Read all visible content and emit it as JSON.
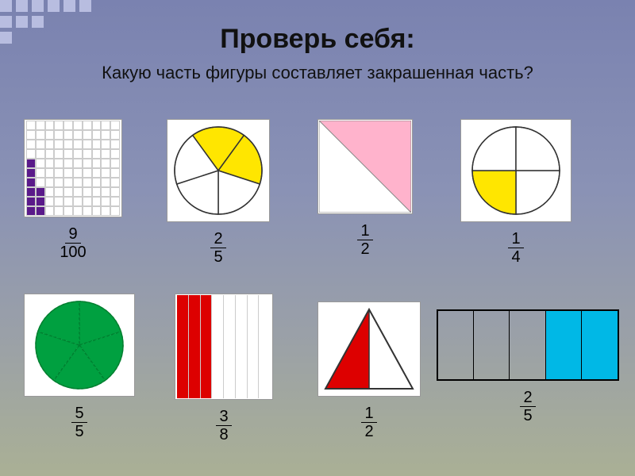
{
  "title": "Проверь себя:",
  "subtitle": "Какую часть фигуры составляет закрашенная часть?",
  "figures": {
    "f1": {
      "num": "9",
      "den": "100",
      "fill_color": "#5a1a8a",
      "grid": 10,
      "filled_cells": [
        [
          4,
          0
        ],
        [
          5,
          0
        ],
        [
          6,
          0
        ],
        [
          7,
          0
        ],
        [
          7,
          1
        ],
        [
          8,
          0
        ],
        [
          8,
          1
        ],
        [
          9,
          0
        ],
        [
          9,
          1
        ]
      ]
    },
    "f2": {
      "num": "2",
      "den": "5",
      "type": "pie",
      "slices": 5,
      "filled": [
        0,
        1
      ],
      "fill_color": "#ffe600",
      "stroke": "#333"
    },
    "f3": {
      "num": "1",
      "den": "2",
      "type": "half-square",
      "fill_color": "#ffb3cc"
    },
    "f4": {
      "num": "1",
      "den": "4",
      "type": "pie",
      "slices": 4,
      "filled": [
        1
      ],
      "fill_color": "#ffe600",
      "stroke": "#333",
      "start_angle": 0
    },
    "f5": {
      "num": "5",
      "den": "5",
      "type": "pie",
      "slices": 5,
      "filled": [
        0,
        1,
        2,
        3,
        4
      ],
      "fill_color": "#00a040",
      "stroke": "#008030",
      "dashed": true
    },
    "f6": {
      "num": "3",
      "den": "8",
      "type": "stripes",
      "total": 8,
      "filled": [
        0,
        1,
        2
      ],
      "fill_color": "#d00"
    },
    "f7": {
      "num": "1",
      "den": "2",
      "type": "half-triangle",
      "fill_color": "#d00"
    },
    "f8": {
      "num": "2",
      "den": "5",
      "type": "stripes-wide",
      "total": 5,
      "filled": [
        3,
        4
      ],
      "fill_color": "#00b8e6"
    }
  },
  "colors": {
    "bg_top": "#7a82b0",
    "bg_bot": "#aab095",
    "deco": "#b8bde0"
  }
}
